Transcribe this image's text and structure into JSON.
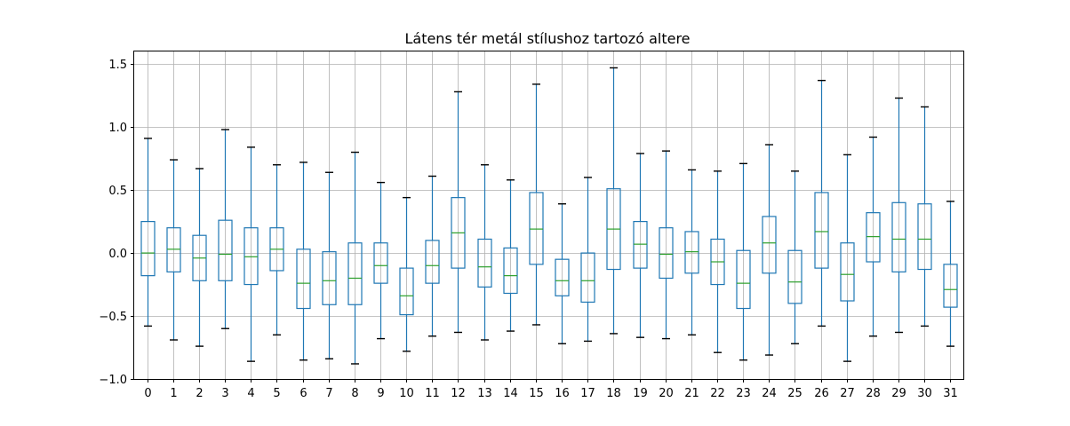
{
  "chart_data": {
    "type": "box",
    "title": "Látens tér metál stílushoz tartozó altere",
    "xlabel": "",
    "ylabel": "",
    "ylim": [
      -1.0,
      1.6
    ],
    "yticks": [
      -1.0,
      -0.5,
      0.0,
      0.5,
      1.0,
      1.5
    ],
    "ytick_labels": [
      "−1.0",
      "−0.5",
      "0.0",
      "0.5",
      "1.0",
      "1.5"
    ],
    "grid": true,
    "legend": "none",
    "colors": {
      "box": "#1f77b4",
      "median": "#2ca02c",
      "caps": "#000000",
      "grid": "#b0b0b0"
    },
    "categories": [
      "0",
      "1",
      "2",
      "3",
      "4",
      "5",
      "6",
      "7",
      "8",
      "9",
      "10",
      "11",
      "12",
      "13",
      "14",
      "15",
      "16",
      "17",
      "18",
      "19",
      "20",
      "21",
      "22",
      "23",
      "24",
      "25",
      "26",
      "27",
      "28",
      "29",
      "30",
      "31"
    ],
    "boxes": [
      {
        "whislo": -0.58,
        "q1": -0.18,
        "med": 0.0,
        "q3": 0.25,
        "whishi": 0.91
      },
      {
        "whislo": -0.69,
        "q1": -0.15,
        "med": 0.03,
        "q3": 0.2,
        "whishi": 0.74
      },
      {
        "whislo": -0.74,
        "q1": -0.22,
        "med": -0.04,
        "q3": 0.14,
        "whishi": 0.67
      },
      {
        "whislo": -0.6,
        "q1": -0.22,
        "med": -0.01,
        "q3": 0.26,
        "whishi": 0.98
      },
      {
        "whislo": -0.86,
        "q1": -0.25,
        "med": -0.03,
        "q3": 0.2,
        "whishi": 0.84
      },
      {
        "whislo": -0.65,
        "q1": -0.14,
        "med": 0.03,
        "q3": 0.2,
        "whishi": 0.7
      },
      {
        "whislo": -0.85,
        "q1": -0.44,
        "med": -0.24,
        "q3": 0.03,
        "whishi": 0.72
      },
      {
        "whislo": -0.84,
        "q1": -0.41,
        "med": -0.22,
        "q3": 0.01,
        "whishi": 0.64
      },
      {
        "whislo": -0.88,
        "q1": -0.41,
        "med": -0.2,
        "q3": 0.08,
        "whishi": 0.8
      },
      {
        "whislo": -0.68,
        "q1": -0.24,
        "med": -0.1,
        "q3": 0.08,
        "whishi": 0.56
      },
      {
        "whislo": -0.78,
        "q1": -0.49,
        "med": -0.34,
        "q3": -0.12,
        "whishi": 0.44
      },
      {
        "whislo": -0.66,
        "q1": -0.24,
        "med": -0.1,
        "q3": 0.1,
        "whishi": 0.61
      },
      {
        "whislo": -0.63,
        "q1": -0.12,
        "med": 0.16,
        "q3": 0.44,
        "whishi": 1.28
      },
      {
        "whislo": -0.69,
        "q1": -0.27,
        "med": -0.11,
        "q3": 0.11,
        "whishi": 0.7
      },
      {
        "whislo": -0.62,
        "q1": -0.32,
        "med": -0.18,
        "q3": 0.04,
        "whishi": 0.58
      },
      {
        "whislo": -0.57,
        "q1": -0.09,
        "med": 0.19,
        "q3": 0.48,
        "whishi": 1.34
      },
      {
        "whislo": -0.72,
        "q1": -0.34,
        "med": -0.22,
        "q3": -0.05,
        "whishi": 0.39
      },
      {
        "whislo": -0.7,
        "q1": -0.39,
        "med": -0.22,
        "q3": 0.0,
        "whishi": 0.6
      },
      {
        "whislo": -0.64,
        "q1": -0.13,
        "med": 0.19,
        "q3": 0.51,
        "whishi": 1.47
      },
      {
        "whislo": -0.67,
        "q1": -0.12,
        "med": 0.07,
        "q3": 0.25,
        "whishi": 0.79
      },
      {
        "whislo": -0.68,
        "q1": -0.2,
        "med": -0.01,
        "q3": 0.2,
        "whishi": 0.81
      },
      {
        "whislo": -0.65,
        "q1": -0.16,
        "med": 0.01,
        "q3": 0.17,
        "whishi": 0.66
      },
      {
        "whislo": -0.79,
        "q1": -0.25,
        "med": -0.07,
        "q3": 0.11,
        "whishi": 0.65
      },
      {
        "whislo": -0.85,
        "q1": -0.44,
        "med": -0.24,
        "q3": 0.02,
        "whishi": 0.71
      },
      {
        "whislo": -0.81,
        "q1": -0.16,
        "med": 0.08,
        "q3": 0.29,
        "whishi": 0.86
      },
      {
        "whislo": -0.72,
        "q1": -0.4,
        "med": -0.23,
        "q3": 0.02,
        "whishi": 0.65
      },
      {
        "whislo": -0.58,
        "q1": -0.12,
        "med": 0.17,
        "q3": 0.48,
        "whishi": 1.37
      },
      {
        "whislo": -0.86,
        "q1": -0.38,
        "med": -0.17,
        "q3": 0.08,
        "whishi": 0.78
      },
      {
        "whislo": -0.66,
        "q1": -0.07,
        "med": 0.13,
        "q3": 0.32,
        "whishi": 0.92
      },
      {
        "whislo": -0.63,
        "q1": -0.15,
        "med": 0.11,
        "q3": 0.4,
        "whishi": 1.23
      },
      {
        "whislo": -0.58,
        "q1": -0.13,
        "med": 0.11,
        "q3": 0.39,
        "whishi": 1.16
      },
      {
        "whislo": -0.74,
        "q1": -0.43,
        "med": -0.29,
        "q3": -0.09,
        "whishi": 0.41
      }
    ]
  }
}
